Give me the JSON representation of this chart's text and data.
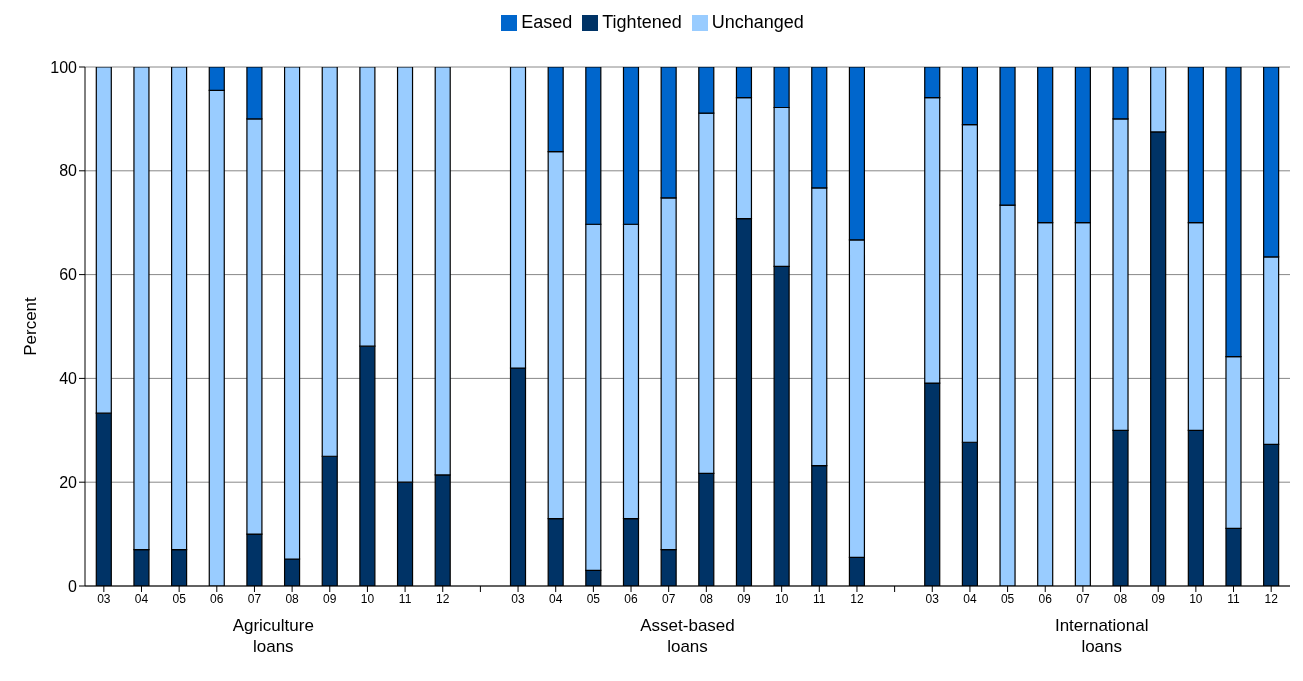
{
  "chart_data": {
    "type": "bar",
    "stacked": true,
    "ylabel": "Percent",
    "categories": [
      "03",
      "04",
      "05",
      "06",
      "07",
      "08",
      "09",
      "10",
      "11",
      "12",
      null,
      "03",
      "04",
      "05",
      "06",
      "07",
      "08",
      "09",
      "10",
      "11",
      "12",
      null,
      "03",
      "04",
      "05",
      "06",
      "07",
      "08",
      "09",
      "10",
      "11",
      "12"
    ],
    "series": [
      {
        "name": "Tightened",
        "color": "#003366",
        "values": [
          33.3,
          7,
          7,
          0,
          10,
          5.2,
          25,
          46.2,
          20,
          21.4,
          null,
          42,
          13,
          3,
          13,
          7,
          21.7,
          70.8,
          61.6,
          23.2,
          5.5,
          null,
          39.1,
          27.7,
          0,
          0,
          0,
          30,
          87.5,
          30,
          11.1,
          27.3
        ]
      },
      {
        "name": "Unchanged",
        "color": "#99ccff",
        "values": [
          66.7,
          93,
          93,
          95.5,
          80,
          94.8,
          75,
          53.8,
          80,
          78.6,
          null,
          58,
          70.7,
          66.7,
          56.7,
          67.8,
          69.4,
          23.3,
          30.6,
          53.5,
          61.2,
          null,
          55,
          61.2,
          73.4,
          70,
          70,
          60,
          12.5,
          40,
          33.1,
          36.1
        ]
      },
      {
        "name": "Eased",
        "color": "#0066cc",
        "values": [
          0,
          0,
          0,
          4.5,
          10,
          0,
          0,
          0,
          0,
          0,
          null,
          0,
          16.3,
          30.3,
          30.3,
          25.2,
          8.9,
          5.9,
          7.8,
          23.3,
          33.3,
          null,
          5.9,
          11.1,
          26.6,
          30,
          30,
          10,
          0,
          30,
          55.8,
          36.6
        ]
      }
    ],
    "ylim": [
      0,
      100
    ],
    "yticks": [
      0,
      20,
      40,
      60,
      80,
      100
    ],
    "grid": "y",
    "legend": "top",
    "annotations": [
      "Agriculture loans",
      "Asset-based loans",
      "International loans"
    ]
  }
}
